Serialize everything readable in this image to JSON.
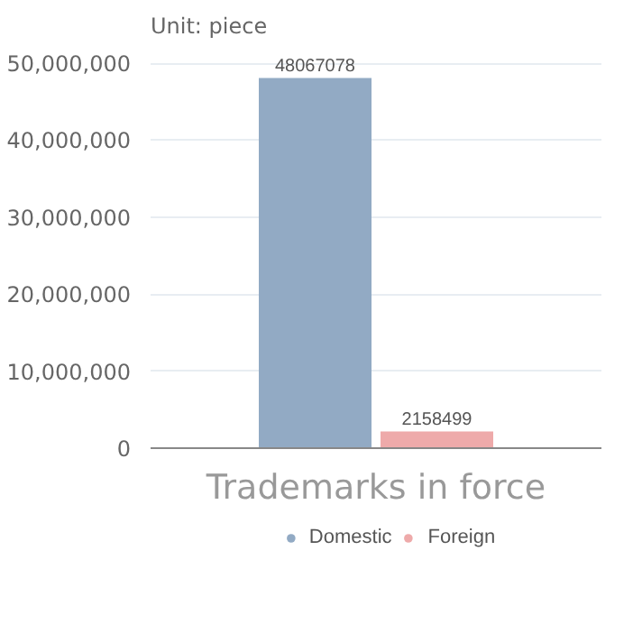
{
  "chart_data": {
    "type": "bar",
    "subtitle": "Unit: piece",
    "categories": [
      "Trademarks in force"
    ],
    "series": [
      {
        "name": "Domestic",
        "color": "#92aac4",
        "values": [
          48067078
        ]
      },
      {
        "name": "Foreign",
        "color": "#eeaaaa",
        "values": [
          2158499
        ]
      }
    ],
    "ylim": [
      0,
      50000000
    ],
    "yticks": [
      {
        "value": 0,
        "label": "0"
      },
      {
        "value": 10000000,
        "label": "10,000,000"
      },
      {
        "value": 20000000,
        "label": "20,000,000"
      },
      {
        "value": 30000000,
        "label": "30,000,000"
      },
      {
        "value": 40000000,
        "label": "40,000,000"
      },
      {
        "value": 50000000,
        "label": "50,000,000"
      }
    ],
    "data_labels": true,
    "grid": "y",
    "legend": "bottom"
  }
}
